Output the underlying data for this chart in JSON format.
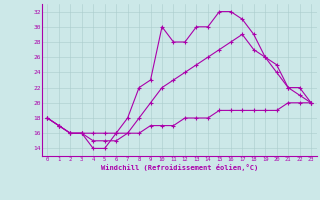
{
  "xlabel": "Windchill (Refroidissement éolien,°C)",
  "bg_color": "#cce8e8",
  "line_color": "#aa00aa",
  "xlim": [
    -0.5,
    23.5
  ],
  "ylim": [
    13,
    33
  ],
  "yticks": [
    14,
    16,
    18,
    20,
    22,
    24,
    26,
    28,
    30,
    32
  ],
  "xticks": [
    0,
    1,
    2,
    3,
    4,
    5,
    6,
    7,
    8,
    9,
    10,
    11,
    12,
    13,
    14,
    15,
    16,
    17,
    18,
    19,
    20,
    21,
    22,
    23
  ],
  "series": [
    {
      "x": [
        0,
        1,
        2,
        3,
        4,
        5,
        6,
        7,
        8,
        9,
        10,
        11,
        12,
        13,
        14,
        15,
        16,
        17,
        18,
        19,
        20,
        21,
        22,
        23
      ],
      "y": [
        18,
        17,
        16,
        16,
        14,
        14,
        16,
        18,
        22,
        23,
        30,
        28,
        28,
        30,
        30,
        32,
        32,
        31,
        29,
        26,
        24,
        22,
        21,
        20
      ]
    },
    {
      "x": [
        0,
        1,
        2,
        3,
        4,
        5,
        6,
        7,
        8,
        9,
        10,
        11,
        12,
        13,
        14,
        15,
        16,
        17,
        18,
        19,
        20,
        21,
        22,
        23
      ],
      "y": [
        18,
        17,
        16,
        16,
        15,
        15,
        15,
        16,
        18,
        20,
        22,
        23,
        24,
        25,
        26,
        27,
        28,
        29,
        27,
        26,
        25,
        22,
        22,
        20
      ]
    },
    {
      "x": [
        0,
        1,
        2,
        3,
        4,
        5,
        6,
        7,
        8,
        9,
        10,
        11,
        12,
        13,
        14,
        15,
        16,
        17,
        18,
        19,
        20,
        21,
        22,
        23
      ],
      "y": [
        18,
        17,
        16,
        16,
        16,
        16,
        16,
        16,
        16,
        17,
        17,
        17,
        18,
        18,
        18,
        19,
        19,
        19,
        19,
        19,
        19,
        20,
        20,
        20
      ]
    }
  ]
}
